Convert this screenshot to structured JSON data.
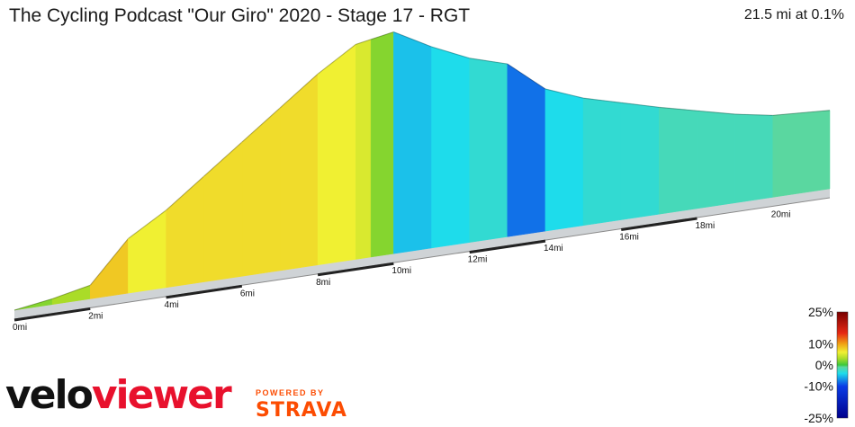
{
  "header": {
    "title": "The Cycling Podcast \"Our Giro\" 2020 - Stage 17 - RGT",
    "summary": "21.5 mi at 0.1%"
  },
  "chart_data": {
    "type": "area",
    "title": "The Cycling Podcast \"Our Giro\" 2020 - Stage 17 - RGT",
    "distance_unit": "mi",
    "x_ticks": [
      "0mi",
      "2mi",
      "4mi",
      "6mi",
      "8mi",
      "10mi",
      "12mi",
      "14mi",
      "16mi",
      "18mi",
      "20mi"
    ],
    "x_tick_values": [
      0,
      2,
      4,
      6,
      8,
      10,
      12,
      14,
      16,
      18,
      20
    ],
    "xlim": [
      0,
      21.5
    ],
    "elevation_profile": {
      "x": [
        0,
        1,
        2,
        3,
        4,
        5,
        6,
        7,
        8,
        9,
        10,
        11,
        12,
        13,
        14,
        15,
        16,
        17,
        18,
        19,
        20,
        21.5
      ],
      "y": [
        0,
        25,
        60,
        240,
        340,
        465,
        590,
        715,
        840,
        945,
        975,
        885,
        810,
        760,
        625,
        560,
        515,
        470,
        430,
        390,
        360,
        345
      ]
    },
    "gradient_segments": [
      {
        "from": 0,
        "to": 1.0,
        "grade": 2
      },
      {
        "from": 1.0,
        "to": 2.0,
        "grade": 3
      },
      {
        "from": 2.0,
        "to": 3.0,
        "grade": 8
      },
      {
        "from": 3.0,
        "to": 4.0,
        "grade": 6
      },
      {
        "from": 4.0,
        "to": 5.0,
        "grade": 7
      },
      {
        "from": 5.0,
        "to": 6.0,
        "grade": 7
      },
      {
        "from": 6.0,
        "to": 7.0,
        "grade": 7
      },
      {
        "from": 7.0,
        "to": 8.0,
        "grade": 7
      },
      {
        "from": 8.0,
        "to": 9.0,
        "grade": 6
      },
      {
        "from": 9.0,
        "to": 9.4,
        "grade": 5
      },
      {
        "from": 9.4,
        "to": 10.0,
        "grade": 2
      },
      {
        "from": 10.0,
        "to": 11.0,
        "grade": -5
      },
      {
        "from": 11.0,
        "to": 12.0,
        "grade": -4
      },
      {
        "from": 12.0,
        "to": 13.0,
        "grade": -3
      },
      {
        "from": 13.0,
        "to": 14.0,
        "grade": -8
      },
      {
        "from": 14.0,
        "to": 15.0,
        "grade": -4
      },
      {
        "from": 15.0,
        "to": 16.0,
        "grade": -3
      },
      {
        "from": 16.0,
        "to": 17.0,
        "grade": -3
      },
      {
        "from": 17.0,
        "to": 18.0,
        "grade": -2
      },
      {
        "from": 18.0,
        "to": 19.0,
        "grade": -2
      },
      {
        "from": 19.0,
        "to": 20.0,
        "grade": -2
      },
      {
        "from": 20.0,
        "to": 21.5,
        "grade": -1
      }
    ],
    "legend": {
      "title": "",
      "ticks": [
        "25%",
        "10%",
        "0%",
        "-10%",
        "-25%"
      ],
      "tick_values": [
        25,
        10,
        0,
        -10,
        -25
      ],
      "placement": "bottom-right"
    },
    "colors": {
      "steep_up": "#8b0000",
      "up": "#f0f030",
      "flat": "#33cc33",
      "down": "#22dfe0",
      "steep_down": "#0022cc"
    }
  },
  "branding": {
    "logo_part1": "velo",
    "logo_part2": "viewer",
    "powered_by": "POWERED BY",
    "strava": "STRAVA"
  }
}
